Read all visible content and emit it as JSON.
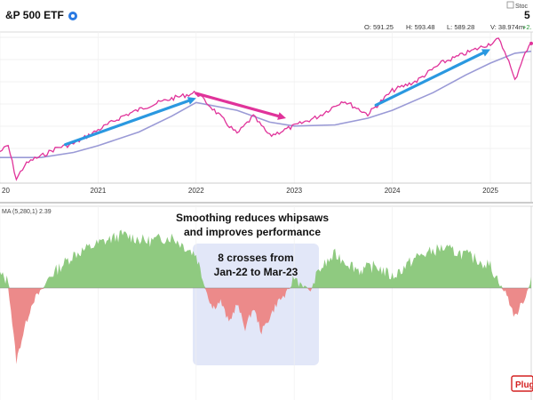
{
  "header": {
    "title": "&P 500 ETF",
    "price_right": "5",
    "logo_text": "Stoc",
    "ohlc": [
      {
        "label": "O:",
        "value": "591.25"
      },
      {
        "label": "H:",
        "value": "593.48"
      },
      {
        "label": "L:",
        "value": "589.28"
      },
      {
        "label": "V:",
        "value": "38.974m"
      },
      {
        "label": "",
        "value": "+2."
      }
    ]
  },
  "indicator_label": "MA (5,280,1) 2.39",
  "annotations": {
    "smoothing_line1": "Smoothing reduces whipsaws",
    "smoothing_line2": "and improves performance",
    "crosses_line1": "8 crosses from",
    "crosses_line2": "Jan-22 to Mar-23",
    "badge": "Plug"
  },
  "colors": {
    "price": "#e0339a",
    "ma": "#9a9ad6",
    "arrow": "#2a98e0",
    "pos_fill": "#8fca80",
    "neg_fill": "#ec8a8a",
    "highlight": "#dde3f7",
    "badge": "#d42020"
  },
  "chart_data": [
    {
      "type": "line",
      "x_ticks": [
        "20",
        "2021",
        "2022",
        "2023",
        "2024",
        "2025"
      ],
      "xlim": [
        "2020-01",
        "2025-06"
      ],
      "series": [
        {
          "x": [
            "2020-01",
            "2020-02",
            "2020-03",
            "2020-04",
            "2020-05",
            "2020-06",
            "2020-08",
            "2020-10",
            "2021-01",
            "2021-04",
            "2021-07",
            "2021-10",
            "2022-01",
            "2022-03",
            "2022-06",
            "2022-08",
            "2022-10",
            "2023-01",
            "2023-04",
            "2023-07",
            "2023-10",
            "2024-01",
            "2024-04",
            "2024-07",
            "2024-10",
            "2025-01",
            "2025-02",
            "2025-03",
            "2025-04",
            "2025-05",
            "2025-06"
          ],
          "values": [
            320,
            335,
            250,
            285,
            300,
            308,
            330,
            340,
            375,
            410,
            435,
            455,
            470,
            430,
            365,
            410,
            360,
            385,
            410,
            450,
            415,
            475,
            500,
            545,
            570,
            595,
            605,
            565,
            500,
            560,
            595
          ]
        },
        {
          "x": [
            "2020-01",
            "2020-06",
            "2020-10",
            "2021-01",
            "2021-06",
            "2021-10",
            "2022-01",
            "2022-06",
            "2022-10",
            "2023-01",
            "2023-06",
            "2023-10",
            "2024-01",
            "2024-06",
            "2024-10",
            "2025-01",
            "2025-04",
            "2025-06"
          ],
          "values": [
            305,
            305,
            318,
            335,
            370,
            410,
            445,
            425,
            395,
            385,
            388,
            405,
            425,
            470,
            515,
            545,
            570,
            575
          ]
        }
      ],
      "arrows": [
        {
          "from": [
            "2020-09",
            338
          ],
          "to": [
            "2022-01",
            456
          ]
        },
        {
          "from": [
            "2022-01",
            468
          ],
          "to": [
            "2022-12",
            405
          ]
        },
        {
          "from": [
            "2023-11",
            438
          ],
          "to": [
            "2025-01",
            580
          ]
        }
      ]
    },
    {
      "type": "area",
      "baseline": 0,
      "x": [
        "2020-01",
        "2020-02",
        "2020-03",
        "2020-04",
        "2020-05",
        "2020-07",
        "2020-10",
        "2021-01",
        "2021-04",
        "2021-07",
        "2021-10",
        "2022-01",
        "2022-02",
        "2022-03",
        "2022-04",
        "2022-05",
        "2022-06",
        "2022-07",
        "2022-08",
        "2022-09",
        "2022-10",
        "2022-11",
        "2022-12",
        "2023-01",
        "2023-03",
        "2023-04",
        "2023-06",
        "2023-09",
        "2023-11",
        "2024-01",
        "2024-04",
        "2024-07",
        "2024-10",
        "2025-01",
        "2025-02",
        "2025-03",
        "2025-04",
        "2025-05",
        "2025-06"
      ],
      "values": [
        0.6,
        0.3,
        -5.5,
        -3.0,
        -1.0,
        0.5,
        1.5,
        2.0,
        2.4,
        2.1,
        2.3,
        1.5,
        0.2,
        -1.5,
        -1.0,
        -2.6,
        -1.2,
        -3.0,
        -1.5,
        -3.3,
        -2.2,
        -1.0,
        -0.5,
        0.5,
        -0.2,
        0.8,
        1.5,
        0.8,
        1.0,
        0.5,
        1.4,
        1.8,
        1.5,
        1.0,
        0.3,
        -0.5,
        -2.2,
        -1.0,
        0.5
      ]
    }
  ]
}
